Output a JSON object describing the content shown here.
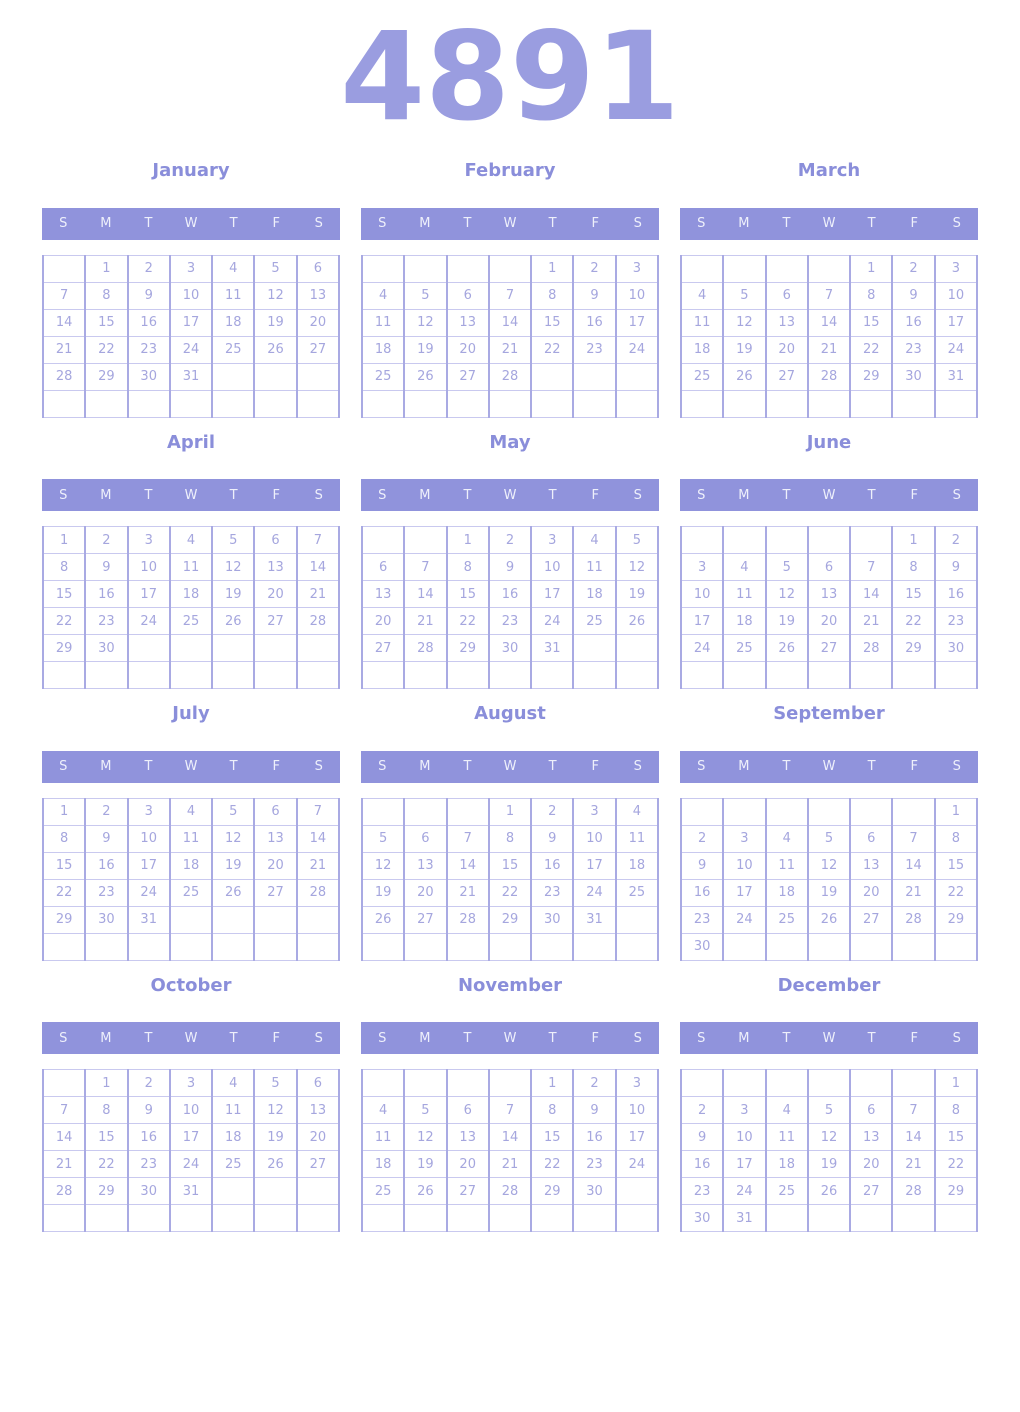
{
  "year": "4891",
  "weekdays": [
    "S",
    "M",
    "T",
    "W",
    "T",
    "F",
    "S"
  ],
  "colors": {
    "background": "#ffffff",
    "accent": "#9093dc",
    "title_color": "#9a9de0",
    "month_name_color": "#8a8eda",
    "weekday_text": "#eef0fb",
    "day_number_color": "#a5a6de",
    "border_h": "#c9c9ef",
    "border_v": "#a9aae3"
  },
  "months": [
    {
      "name": "January",
      "grid": [
        [
          "",
          "1",
          "2",
          "3",
          "4",
          "5",
          "6"
        ],
        [
          "7",
          "8",
          "9",
          "10",
          "11",
          "12",
          "13"
        ],
        [
          "14",
          "15",
          "16",
          "17",
          "18",
          "19",
          "20"
        ],
        [
          "21",
          "22",
          "23",
          "24",
          "25",
          "26",
          "27"
        ],
        [
          "28",
          "29",
          "30",
          "31",
          "",
          "",
          ""
        ],
        [
          "",
          "",
          "",
          "",
          "",
          "",
          ""
        ]
      ]
    },
    {
      "name": "February",
      "grid": [
        [
          "",
          "",
          "",
          "",
          "1",
          "2",
          "3"
        ],
        [
          "4",
          "5",
          "6",
          "7",
          "8",
          "9",
          "10"
        ],
        [
          "11",
          "12",
          "13",
          "14",
          "15",
          "16",
          "17"
        ],
        [
          "18",
          "19",
          "20",
          "21",
          "22",
          "23",
          "24"
        ],
        [
          "25",
          "26",
          "27",
          "28",
          "",
          "",
          ""
        ],
        [
          "",
          "",
          "",
          "",
          "",
          "",
          ""
        ]
      ]
    },
    {
      "name": "March",
      "grid": [
        [
          "",
          "",
          "",
          "",
          "1",
          "2",
          "3"
        ],
        [
          "4",
          "5",
          "6",
          "7",
          "8",
          "9",
          "10"
        ],
        [
          "11",
          "12",
          "13",
          "14",
          "15",
          "16",
          "17"
        ],
        [
          "18",
          "19",
          "20",
          "21",
          "22",
          "23",
          "24"
        ],
        [
          "25",
          "26",
          "27",
          "28",
          "29",
          "30",
          "31"
        ],
        [
          "",
          "",
          "",
          "",
          "",
          "",
          ""
        ]
      ]
    },
    {
      "name": "April",
      "grid": [
        [
          "1",
          "2",
          "3",
          "4",
          "5",
          "6",
          "7"
        ],
        [
          "8",
          "9",
          "10",
          "11",
          "12",
          "13",
          "14"
        ],
        [
          "15",
          "16",
          "17",
          "18",
          "19",
          "20",
          "21"
        ],
        [
          "22",
          "23",
          "24",
          "25",
          "26",
          "27",
          "28"
        ],
        [
          "29",
          "30",
          "",
          "",
          "",
          "",
          ""
        ],
        [
          "",
          "",
          "",
          "",
          "",
          "",
          ""
        ]
      ]
    },
    {
      "name": "May",
      "grid": [
        [
          "",
          "",
          "1",
          "2",
          "3",
          "4",
          "5"
        ],
        [
          "6",
          "7",
          "8",
          "9",
          "10",
          "11",
          "12"
        ],
        [
          "13",
          "14",
          "15",
          "16",
          "17",
          "18",
          "19"
        ],
        [
          "20",
          "21",
          "22",
          "23",
          "24",
          "25",
          "26"
        ],
        [
          "27",
          "28",
          "29",
          "30",
          "31",
          "",
          ""
        ],
        [
          "",
          "",
          "",
          "",
          "",
          "",
          ""
        ]
      ]
    },
    {
      "name": "June",
      "grid": [
        [
          "",
          "",
          "",
          "",
          "",
          "1",
          "2"
        ],
        [
          "3",
          "4",
          "5",
          "6",
          "7",
          "8",
          "9"
        ],
        [
          "10",
          "11",
          "12",
          "13",
          "14",
          "15",
          "16"
        ],
        [
          "17",
          "18",
          "19",
          "20",
          "21",
          "22",
          "23"
        ],
        [
          "24",
          "25",
          "26",
          "27",
          "28",
          "29",
          "30"
        ],
        [
          "",
          "",
          "",
          "",
          "",
          "",
          ""
        ]
      ]
    },
    {
      "name": "July",
      "grid": [
        [
          "1",
          "2",
          "3",
          "4",
          "5",
          "6",
          "7"
        ],
        [
          "8",
          "9",
          "10",
          "11",
          "12",
          "13",
          "14"
        ],
        [
          "15",
          "16",
          "17",
          "18",
          "19",
          "20",
          "21"
        ],
        [
          "22",
          "23",
          "24",
          "25",
          "26",
          "27",
          "28"
        ],
        [
          "29",
          "30",
          "31",
          "",
          "",
          "",
          ""
        ],
        [
          "",
          "",
          "",
          "",
          "",
          "",
          ""
        ]
      ]
    },
    {
      "name": "August",
      "grid": [
        [
          "",
          "",
          "",
          "1",
          "2",
          "3",
          "4"
        ],
        [
          "5",
          "6",
          "7",
          "8",
          "9",
          "10",
          "11"
        ],
        [
          "12",
          "13",
          "14",
          "15",
          "16",
          "17",
          "18"
        ],
        [
          "19",
          "20",
          "21",
          "22",
          "23",
          "24",
          "25"
        ],
        [
          "26",
          "27",
          "28",
          "29",
          "30",
          "31",
          ""
        ],
        [
          "",
          "",
          "",
          "",
          "",
          "",
          ""
        ]
      ]
    },
    {
      "name": "September",
      "grid": [
        [
          "",
          "",
          "",
          "",
          "",
          "",
          "1"
        ],
        [
          "2",
          "3",
          "4",
          "5",
          "6",
          "7",
          "8"
        ],
        [
          "9",
          "10",
          "11",
          "12",
          "13",
          "14",
          "15"
        ],
        [
          "16",
          "17",
          "18",
          "19",
          "20",
          "21",
          "22"
        ],
        [
          "23",
          "24",
          "25",
          "26",
          "27",
          "28",
          "29"
        ],
        [
          "30",
          "",
          "",
          "",
          "",
          "",
          ""
        ]
      ]
    },
    {
      "name": "October",
      "grid": [
        [
          "",
          "1",
          "2",
          "3",
          "4",
          "5",
          "6"
        ],
        [
          "7",
          "8",
          "9",
          "10",
          "11",
          "12",
          "13"
        ],
        [
          "14",
          "15",
          "16",
          "17",
          "18",
          "19",
          "20"
        ],
        [
          "21",
          "22",
          "23",
          "24",
          "25",
          "26",
          "27"
        ],
        [
          "28",
          "29",
          "30",
          "31",
          "",
          "",
          ""
        ],
        [
          "",
          "",
          "",
          "",
          "",
          "",
          ""
        ]
      ]
    },
    {
      "name": "November",
      "grid": [
        [
          "",
          "",
          "",
          "",
          "1",
          "2",
          "3"
        ],
        [
          "4",
          "5",
          "6",
          "7",
          "8",
          "9",
          "10"
        ],
        [
          "11",
          "12",
          "13",
          "14",
          "15",
          "16",
          "17"
        ],
        [
          "18",
          "19",
          "20",
          "21",
          "22",
          "23",
          "24"
        ],
        [
          "25",
          "26",
          "27",
          "28",
          "29",
          "30",
          ""
        ],
        [
          "",
          "",
          "",
          "",
          "",
          "",
          ""
        ]
      ]
    },
    {
      "name": "December",
      "grid": [
        [
          "",
          "",
          "",
          "",
          "",
          "",
          "1"
        ],
        [
          "2",
          "3",
          "4",
          "5",
          "6",
          "7",
          "8"
        ],
        [
          "9",
          "10",
          "11",
          "12",
          "13",
          "14",
          "15"
        ],
        [
          "16",
          "17",
          "18",
          "19",
          "20",
          "21",
          "22"
        ],
        [
          "23",
          "24",
          "25",
          "26",
          "27",
          "28",
          "29"
        ],
        [
          "30",
          "31",
          "",
          "",
          "",
          "",
          ""
        ]
      ]
    }
  ]
}
